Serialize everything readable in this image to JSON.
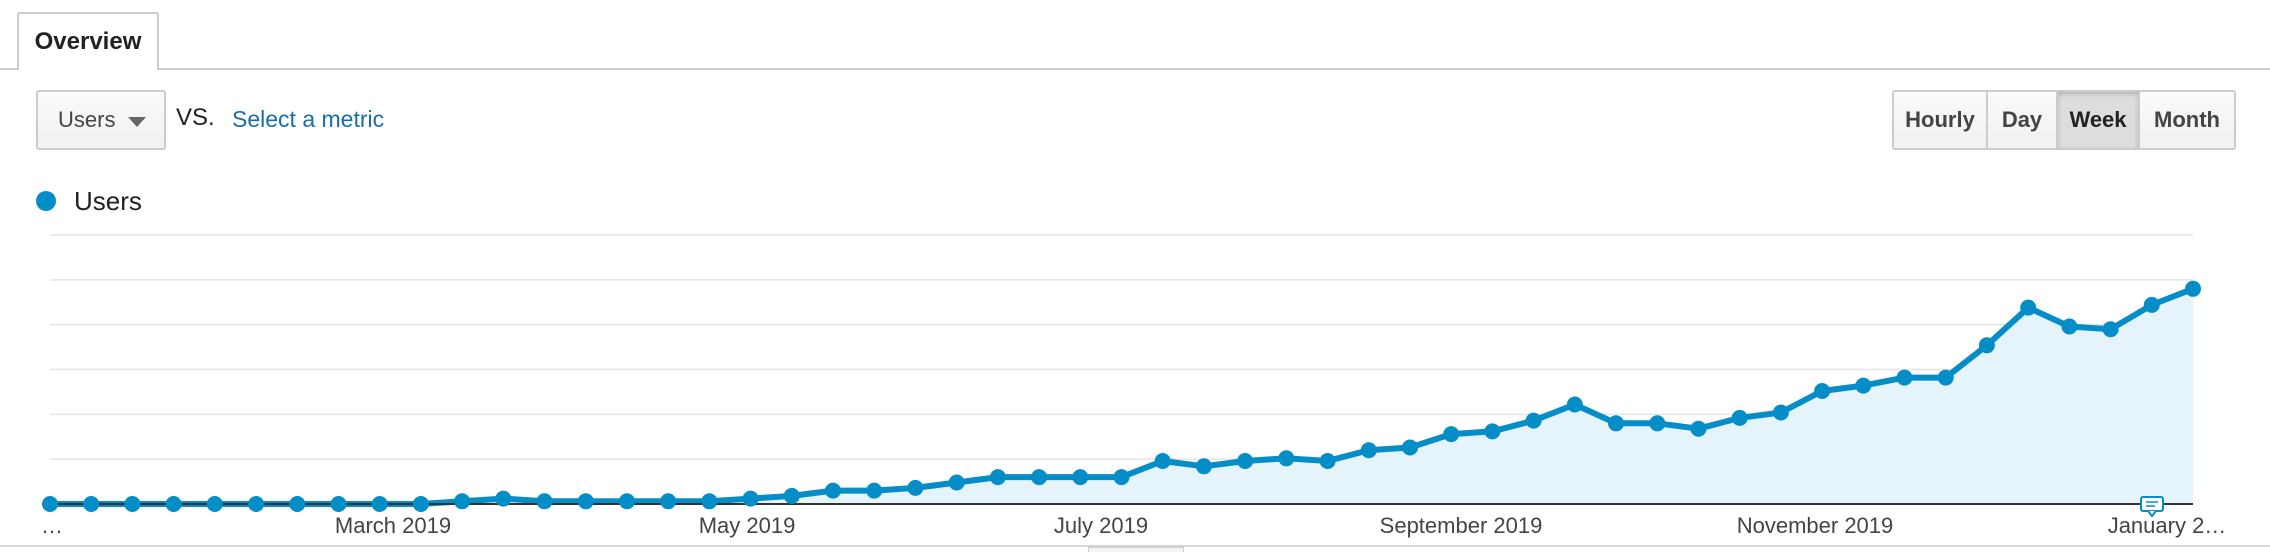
{
  "tabs": [
    {
      "label": "Overview",
      "active": true
    }
  ],
  "metric": {
    "selected": "Users",
    "vs_label": "VS.",
    "select_metric_link": "Select a metric"
  },
  "granularity": {
    "options": [
      {
        "label": "Hourly",
        "active": false
      },
      {
        "label": "Day",
        "active": false
      },
      {
        "label": "Week",
        "active": true
      },
      {
        "label": "Month",
        "active": false
      }
    ]
  },
  "colors": {
    "series": "#058dc7",
    "area": "#e5f3fa",
    "grid": "#e4e4e4",
    "accent_link": "#1a6dad"
  },
  "chart_data": {
    "type": "area",
    "series": [
      {
        "name": "Users",
        "values": [
          0,
          0,
          0,
          0,
          0,
          0,
          0,
          0,
          0,
          0,
          1,
          2,
          1,
          1,
          1,
          1,
          1,
          2,
          3,
          5,
          5,
          6,
          8,
          10,
          10,
          10,
          10,
          16,
          14,
          16,
          17,
          16,
          20,
          21,
          26,
          27,
          31,
          37,
          30,
          30,
          28,
          32,
          34,
          42,
          44,
          47,
          47,
          59,
          73,
          66,
          65,
          74,
          80
        ]
      }
    ],
    "x_tick_labels": [
      "…",
      "March 2019",
      "May 2019",
      "July 2019",
      "September 2019",
      "November 2019",
      "January 2…"
    ],
    "ylim": [
      0,
      100
    ],
    "grid": true,
    "legend": "top-left"
  }
}
